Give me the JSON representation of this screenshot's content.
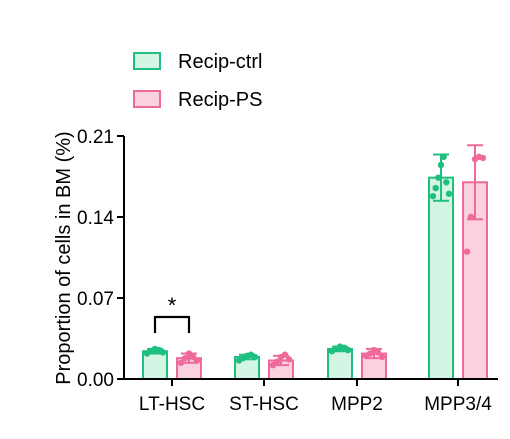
{
  "chart_data": {
    "type": "bar",
    "title": "",
    "xlabel": "",
    "ylabel": "Proportion of cells in BM (%)",
    "ylim": [
      0,
      0.21
    ],
    "yticks": [
      0.0,
      0.07,
      0.14,
      0.21
    ],
    "ytick_labels": [
      "0.00",
      "0.07",
      "0.14",
      "0.21"
    ],
    "categories": [
      "LT-HSC",
      "ST-HSC",
      "MPP2",
      "MPP3/4"
    ],
    "grid": false,
    "legend_position": "top-left",
    "series": [
      {
        "name": "Recip-ctrl",
        "stroke": "#1fbf7f",
        "fill": "#d4f5e4",
        "values": [
          0.024,
          0.019,
          0.026,
          0.174
        ],
        "errors": [
          0.002,
          0.002,
          0.002,
          0.02
        ],
        "points": [
          [
            0.022,
            0.024,
            0.026,
            0.025,
            0.023
          ],
          [
            0.016,
            0.018,
            0.02,
            0.021,
            0.019
          ],
          [
            0.024,
            0.026,
            0.028,
            0.027,
            0.025
          ],
          [
            0.158,
            0.165,
            0.174,
            0.185,
            0.192,
            0.17,
            0.16
          ]
        ]
      },
      {
        "name": "Recip-PS",
        "stroke": "#ef6a9a",
        "fill": "#fbd0df",
        "values": [
          0.018,
          0.016,
          0.022,
          0.17
        ],
        "errors": [
          0.004,
          0.004,
          0.004,
          0.032
        ],
        "points": [
          [
            0.014,
            0.018,
            0.022,
            0.019,
            0.016
          ],
          [
            0.012,
            0.015,
            0.019,
            0.021,
            0.017
          ],
          [
            0.02,
            0.022,
            0.025,
            0.023,
            0.019
          ],
          [
            0.11,
            0.14,
            0.19,
            0.192,
            0.191
          ]
        ]
      }
    ],
    "annotations": [
      {
        "text": "*",
        "category": "LT-HSC",
        "type": "significance-bracket"
      }
    ]
  }
}
